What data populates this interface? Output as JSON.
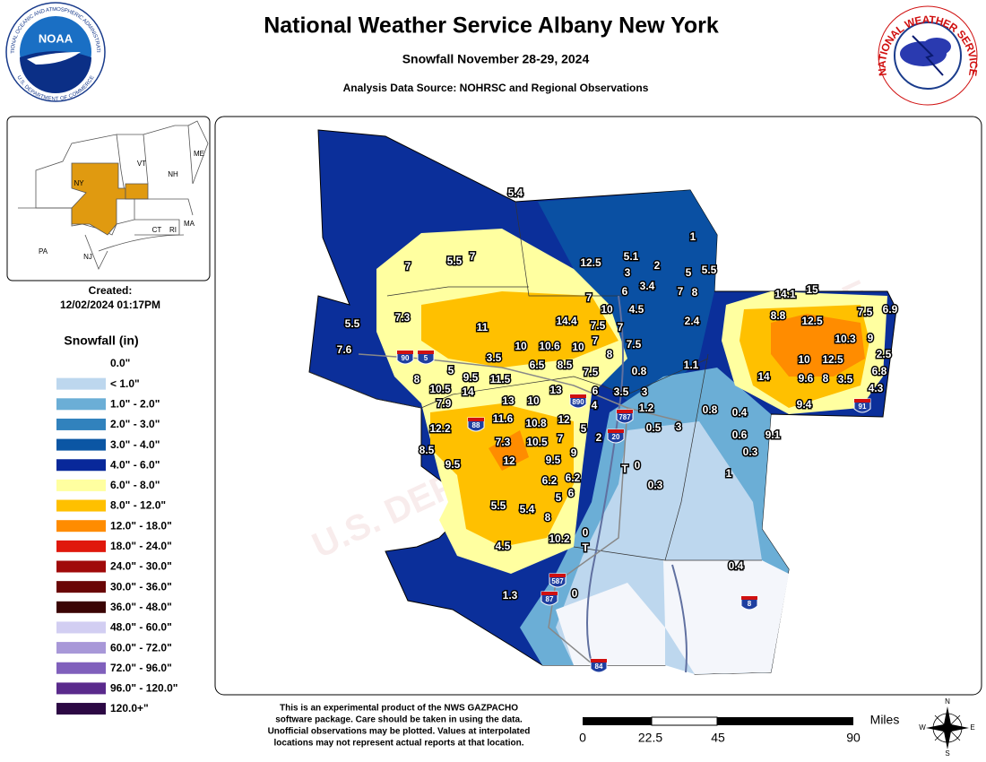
{
  "header": {
    "title": "National Weather Service Albany New York",
    "subtitle": "Snowfall November 28-29, 2024",
    "source": "Analysis Data Source: NOHRSC and Regional Observations"
  },
  "logos": {
    "noaa": "NOAA",
    "noaa_ring_top": "NATIONAL OCEANIC AND ATMOSPHERIC ADMINISTRATION",
    "noaa_ring_bottom": "U.S. DEPARTMENT OF COMMERCE",
    "nws_ring": "NATIONAL WEATHER SERVICE"
  },
  "inset": {
    "states": [
      "VT",
      "NH",
      "ME",
      "NY",
      "MA",
      "CT",
      "RI",
      "PA",
      "NJ"
    ]
  },
  "created": {
    "label": "Created:",
    "timestamp": "12/02/2024 01:17PM"
  },
  "legend": {
    "title": "Snowfall (in)",
    "items": [
      {
        "label": "0.0\"",
        "color": "#ffffff"
      },
      {
        "label": "< 1.0\"",
        "color": "#bdd7ee"
      },
      {
        "label": "1.0\" - 2.0\"",
        "color": "#6baed6"
      },
      {
        "label": "2.0\" - 3.0\"",
        "color": "#3182bd"
      },
      {
        "label": "3.0\" - 4.0\"",
        "color": "#0b56a4"
      },
      {
        "label": "4.0\" - 6.0\"",
        "color": "#08289a"
      },
      {
        "label": "6.0\" - 8.0\"",
        "color": "#ffffa0"
      },
      {
        "label": "8.0\" - 12.0\"",
        "color": "#ffc000"
      },
      {
        "label": "12.0\" - 18.0\"",
        "color": "#ff8c00"
      },
      {
        "label": "18.0\" - 24.0\"",
        "color": "#e0180c"
      },
      {
        "label": "24.0\" - 30.0\"",
        "color": "#a00a0a"
      },
      {
        "label": "30.0\" - 36.0\"",
        "color": "#6a0606"
      },
      {
        "label": "36.0\" - 48.0\"",
        "color": "#3a0404"
      },
      {
        "label": "48.0\" - 60.0\"",
        "color": "#d2cef2"
      },
      {
        "label": "60.0\" - 72.0\"",
        "color": "#a898d8"
      },
      {
        "label": "72.0\" - 96.0\"",
        "color": "#8060bc"
      },
      {
        "label": "96.0\" - 120.0\"",
        "color": "#5a2a8c"
      },
      {
        "label": "120.0+\"",
        "color": "#2c0844"
      }
    ]
  },
  "observations": [
    "5.4",
    "1",
    "5.1",
    "12.5",
    "2",
    "3",
    "5",
    "5.5",
    "7",
    "5.5",
    "7",
    "3.4",
    "7",
    "8",
    "6",
    "7",
    "10",
    "4.5",
    "7.3",
    "5.5",
    "11",
    "14.4",
    "7.5",
    "7",
    "2.4",
    "7.6",
    "10",
    "10.6",
    "10",
    "7",
    "7.5",
    "8",
    "3.5",
    "6.5",
    "8.5",
    "0.8",
    "1.1",
    "8",
    "9.5",
    "11.5",
    "7.5",
    "5",
    "10.5",
    "14",
    "13",
    "6",
    "3.5",
    "3",
    "7.9",
    "13",
    "10",
    "4",
    "1.2",
    "0.8",
    "0.4",
    "12",
    "11.6",
    "10.8",
    "5",
    "0.5",
    "3",
    "12.2",
    "7",
    "2",
    "0.6",
    "9.1",
    "10.5",
    "7.3",
    "0.3",
    "8.5",
    "9",
    "9.5",
    "12",
    "9.5",
    "0",
    "T",
    "1",
    "6.2",
    "6.2",
    "0.3",
    "6",
    "5",
    "5.5",
    "5.4",
    "8",
    "0",
    "10.2",
    "T",
    "4.5",
    "0.4",
    "1.3",
    "0",
    "14.1",
    "15",
    "8.8",
    "12.5",
    "7.5",
    "6.9",
    "10.3",
    "9",
    "2.5",
    "10",
    "12.5",
    "14",
    "9.6",
    "8",
    "3.5",
    "6.8",
    "4.3",
    "9.4"
  ],
  "highways": [
    "90",
    "5",
    "890",
    "88",
    "787",
    "20",
    "587",
    "87",
    "84",
    "91",
    "8"
  ],
  "watermark": "U.S. DEPARTMENT OF COMMERCE",
  "disclaimer": [
    "This is an experimental product of the NWS GAZPACHO",
    "software package. Care should be taken in using the data.",
    "Unofficial observations may be plotted. Values at interpolated",
    "locations may not represent actual reports at that location."
  ],
  "scale": {
    "unit": "Miles",
    "ticks": [
      0,
      22.5,
      45,
      90
    ]
  },
  "compass": [
    "N",
    "S",
    "E",
    "W"
  ]
}
